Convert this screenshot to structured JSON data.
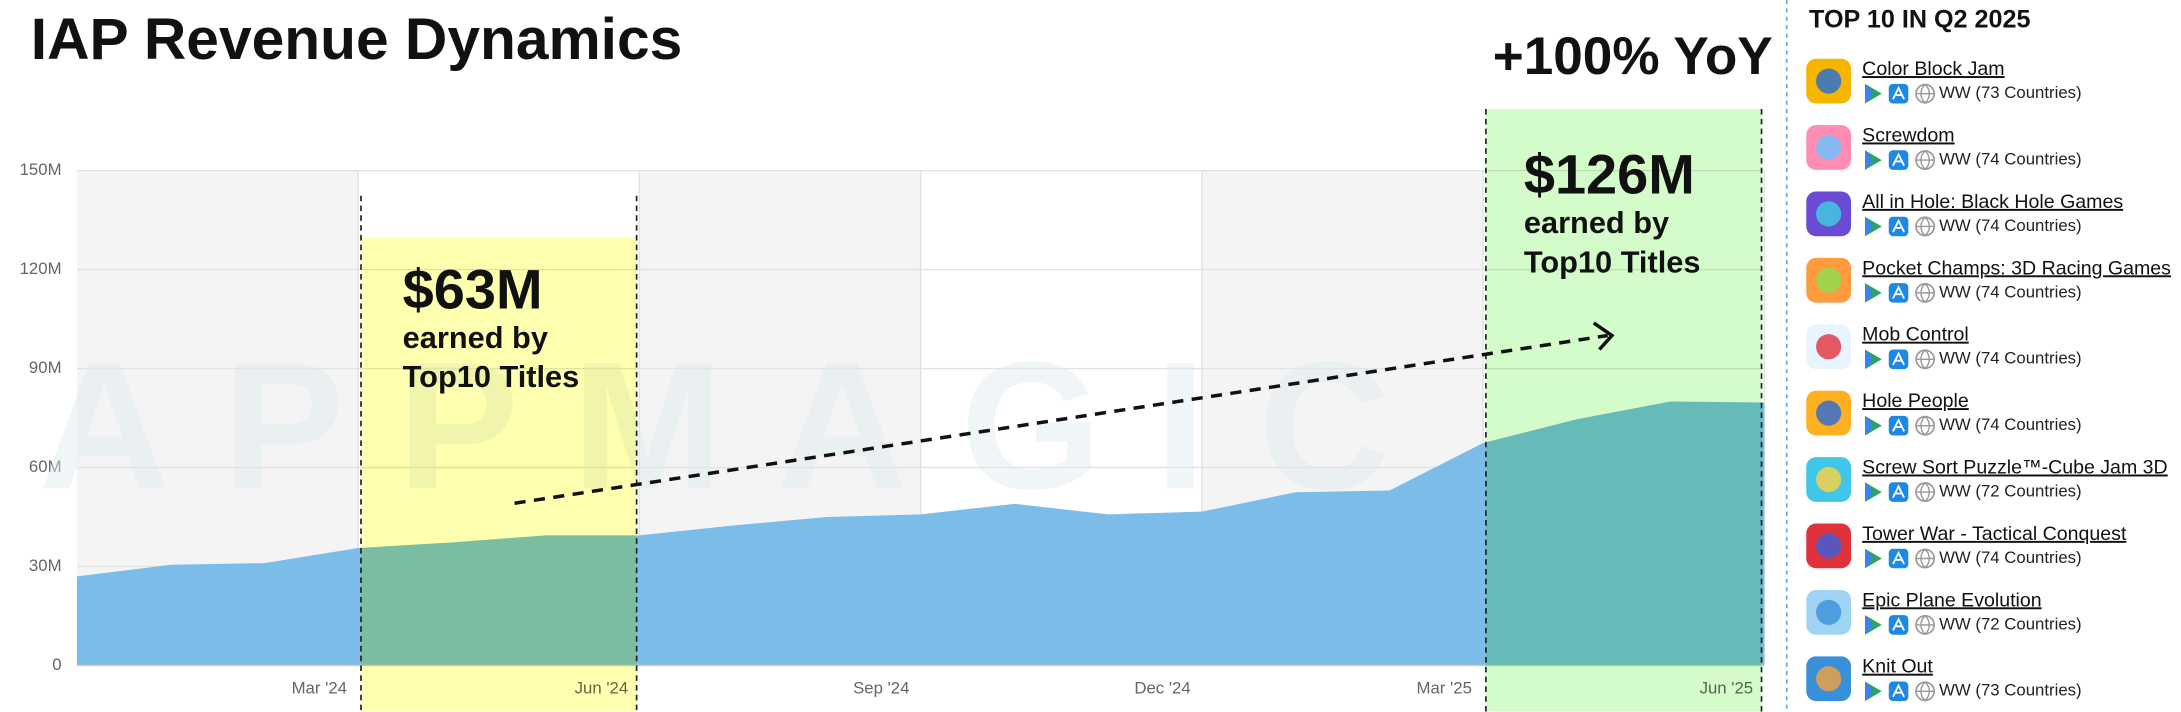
{
  "chart_data": {
    "type": "area",
    "title": "IAP Revenue Dynamics",
    "annotation": "+100% YoY",
    "watermark": "APPMAGIC",
    "categories": [
      null,
      null,
      null,
      "Mar '24",
      null,
      null,
      "Jun '24",
      null,
      null,
      "Sep '24",
      null,
      null,
      "Dec '24",
      null,
      null,
      "Mar '25",
      null,
      null,
      "Jun '25"
    ],
    "values": [
      27,
      30.5,
      31,
      35.6,
      37.3,
      39.4,
      39.4,
      42.4,
      45,
      45.8,
      49,
      45.8,
      46.6,
      52.5,
      53,
      67.4,
      74.6,
      80,
      79.7
    ],
    "color": "#7bbde8",
    "ylim": [
      0,
      150
    ],
    "yticks": [
      0,
      {
        "value": 30,
        "label": "30M"
      },
      {
        "value": 60,
        "label": "60M"
      },
      {
        "value": 90,
        "label": "90M"
      },
      {
        "value": 120,
        "label": "120M"
      },
      {
        "value": 150,
        "label": "150M"
      }
    ],
    "grid": true,
    "highlights": [
      {
        "from": "Mar '24",
        "to": "Jun '24",
        "color": "#ffffb0",
        "headline": "$63M",
        "lines": [
          "earned by",
          "Top10 Titles"
        ]
      },
      {
        "from": "Mar '25",
        "to": "Jun '25",
        "color": "#d4fcca",
        "headline": "$126M",
        "lines": [
          "earned by",
          "Top10 Titles"
        ]
      }
    ]
  },
  "top_list": {
    "title": "TOP 10 IN Q2 2025",
    "items": [
      {
        "name": "Color Block Jam",
        "region": "WW (73 Countries)"
      },
      {
        "name": "Screwdom",
        "region": "WW (74 Countries)"
      },
      {
        "name": "All in Hole: Black Hole Games",
        "region": "WW (74 Countries)"
      },
      {
        "name": "Pocket Champs: 3D Racing Games",
        "region": "WW (74 Countries)"
      },
      {
        "name": "Mob Control",
        "region": "WW (74 Countries)"
      },
      {
        "name": "Hole People",
        "region": "WW (74 Countries)"
      },
      {
        "name": "Screw Sort Puzzle™-Cube Jam 3D",
        "region": "WW (72 Countries)"
      },
      {
        "name": "Tower War - Tactical Conquest",
        "region": "WW (74 Countries)"
      },
      {
        "name": "Epic Plane Evolution",
        "region": "WW (72 Countries)"
      },
      {
        "name": "Knit Out",
        "region": "WW (73 Countries)"
      }
    ]
  }
}
